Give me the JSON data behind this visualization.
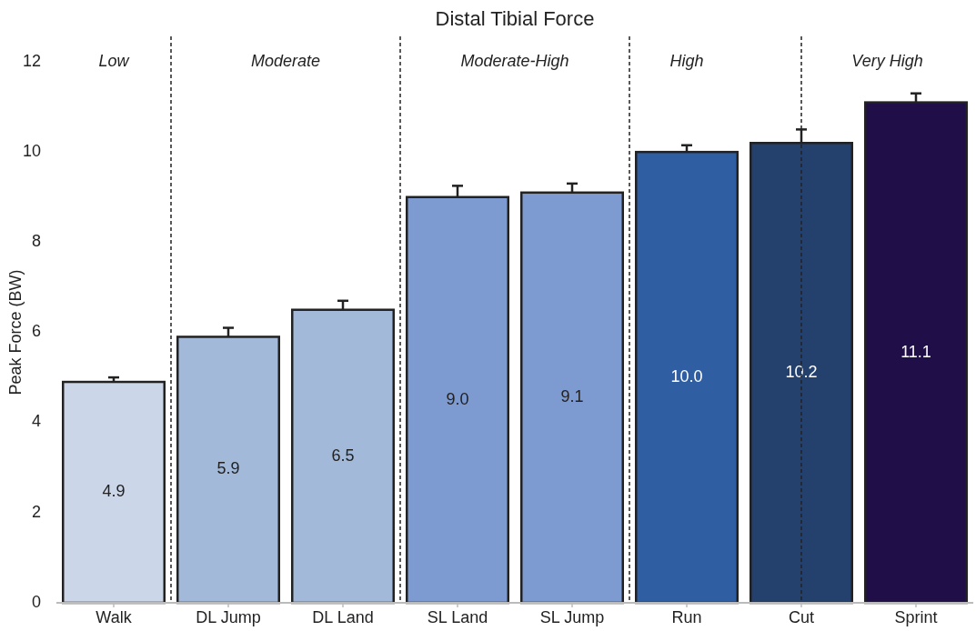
{
  "chart_data": {
    "type": "bar",
    "title": "Distal Tibial Force",
    "ylabel": "Peak Force (BW)",
    "categories": [
      "Walk",
      "DL Jump",
      "DL Land",
      "SL Land",
      "SL Jump",
      "Run",
      "Cut",
      "Sprint"
    ],
    "values": [
      4.9,
      5.9,
      6.5,
      9.0,
      9.1,
      10.0,
      10.2,
      11.1
    ],
    "value_labels": [
      "4.9",
      "5.9",
      "6.5",
      "9.0",
      "9.1",
      "10.0",
      "10.2",
      "11.1"
    ],
    "errors": [
      0.1,
      0.2,
      0.2,
      0.25,
      0.2,
      0.15,
      0.3,
      0.2
    ],
    "colors": [
      "#cbd6e8",
      "#a2b9d9",
      "#a2b9d9",
      "#7d9bd0",
      "#7d9bd0",
      "#2f5ea2",
      "#24416e",
      "#1f0e47"
    ],
    "ylim": [
      0,
      12
    ],
    "yticks": [
      0,
      2,
      4,
      6,
      8,
      10,
      12
    ],
    "ref_lines": [
      {
        "axis": "x",
        "value": "Cut",
        "line_style": "dashed"
      }
    ],
    "annotations": [
      "Low",
      "Moderate",
      "Moderate-High",
      "High",
      "Very High"
    ]
  }
}
